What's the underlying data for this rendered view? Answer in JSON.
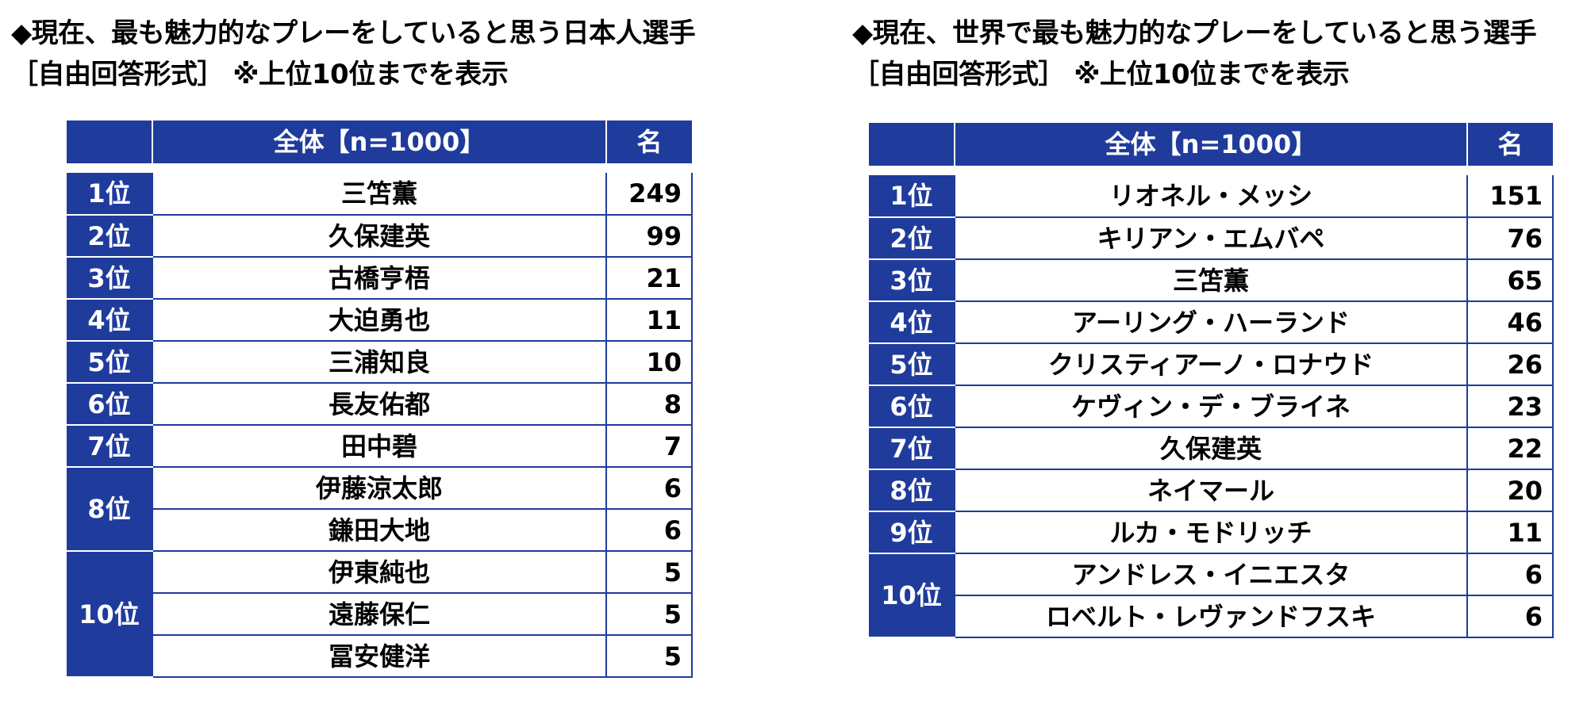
{
  "left": {
    "title_line1": "◆現在、最も魅力的なプレーをしていると思う日本人選手",
    "title_line2": "［自由回答形式］ ※上位10位までを表示",
    "header_total": "全体【n=1000】",
    "header_count": "名",
    "groups": [
      {
        "rank": "1位",
        "entries": [
          {
            "name": "三笘薫",
            "count": "249"
          }
        ]
      },
      {
        "rank": "2位",
        "entries": [
          {
            "name": "久保建英",
            "count": "99"
          }
        ]
      },
      {
        "rank": "3位",
        "entries": [
          {
            "name": "古橋亨梧",
            "count": "21"
          }
        ]
      },
      {
        "rank": "4位",
        "entries": [
          {
            "name": "大迫勇也",
            "count": "11"
          }
        ]
      },
      {
        "rank": "5位",
        "entries": [
          {
            "name": "三浦知良",
            "count": "10"
          }
        ]
      },
      {
        "rank": "6位",
        "entries": [
          {
            "name": "長友佑都",
            "count": "8"
          }
        ]
      },
      {
        "rank": "7位",
        "entries": [
          {
            "name": "田中碧",
            "count": "7"
          }
        ]
      },
      {
        "rank": "8位",
        "entries": [
          {
            "name": "伊藤涼太郎",
            "count": "6"
          },
          {
            "name": "鎌田大地",
            "count": "6"
          }
        ]
      },
      {
        "rank": "10位",
        "entries": [
          {
            "name": "伊東純也",
            "count": "5"
          },
          {
            "name": "遠藤保仁",
            "count": "5"
          },
          {
            "name": "冨安健洋",
            "count": "5"
          }
        ]
      }
    ]
  },
  "right": {
    "title_line1": "◆現在、世界で最も魅力的なプレーをしていると思う選手",
    "title_line2": "［自由回答形式］ ※上位10位までを表示",
    "header_total": "全体【n=1000】",
    "header_count": "名",
    "groups": [
      {
        "rank": "1位",
        "entries": [
          {
            "name": "リオネル・メッシ",
            "count": "151"
          }
        ]
      },
      {
        "rank": "2位",
        "entries": [
          {
            "name": "キリアン・エムバペ",
            "count": "76"
          }
        ]
      },
      {
        "rank": "3位",
        "entries": [
          {
            "name": "三笘薫",
            "count": "65"
          }
        ]
      },
      {
        "rank": "4位",
        "entries": [
          {
            "name": "アーリング・ハーランド",
            "count": "46"
          }
        ]
      },
      {
        "rank": "5位",
        "entries": [
          {
            "name": "クリスティアーノ・ロナウド",
            "count": "26"
          }
        ]
      },
      {
        "rank": "6位",
        "entries": [
          {
            "name": "ケヴィン・デ・ブライネ",
            "count": "23"
          }
        ]
      },
      {
        "rank": "7位",
        "entries": [
          {
            "name": "久保建英",
            "count": "22"
          }
        ]
      },
      {
        "rank": "8位",
        "entries": [
          {
            "name": "ネイマール",
            "count": "20"
          }
        ]
      },
      {
        "rank": "9位",
        "entries": [
          {
            "name": "ルカ・モドリッチ",
            "count": "11"
          }
        ]
      },
      {
        "rank": "10位",
        "entries": [
          {
            "name": "アンドレス・イニエスタ",
            "count": "6"
          },
          {
            "name": "ロベルト・レヴァンドフスキ",
            "count": "6"
          }
        ]
      }
    ]
  },
  "colors": {
    "header_blue": "#1f3b9c"
  }
}
